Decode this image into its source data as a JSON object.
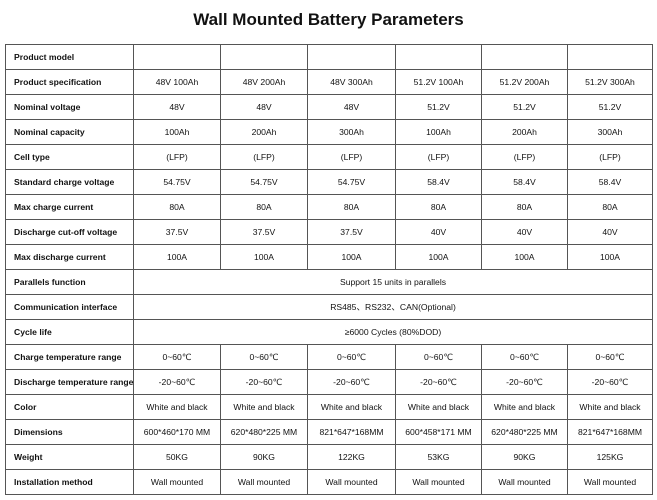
{
  "header": {
    "title": "Wall Mounted Battery Parameters"
  },
  "table": {
    "rows": [
      {
        "label": "Product model",
        "cells": []
      },
      {
        "label": "Product specification",
        "cells": [
          "48V 100Ah",
          "48V 200Ah",
          "48V 300Ah",
          "51.2V 100Ah",
          "51.2V 200Ah",
          "51.2V 300Ah"
        ]
      },
      {
        "label": "Nominal voltage",
        "cells": [
          "48V",
          "48V",
          "48V",
          "51.2V",
          "51.2V",
          "51.2V"
        ]
      },
      {
        "label": "Nominal capacity",
        "cells": [
          "100Ah",
          "200Ah",
          "300Ah",
          "100Ah",
          "200Ah",
          "300Ah"
        ]
      },
      {
        "label": "Cell type",
        "cells": [
          "(LFP)",
          "(LFP)",
          "(LFP)",
          "(LFP)",
          "(LFP)",
          "(LFP)"
        ]
      },
      {
        "label": "Standard charge voltage",
        "cells": [
          "54.75V",
          "54.75V",
          "54.75V",
          "58.4V",
          "58.4V",
          "58.4V"
        ]
      },
      {
        "label": "Max charge current",
        "cells": [
          "80A",
          "80A",
          "80A",
          "80A",
          "80A",
          "80A"
        ]
      },
      {
        "label": "Discharge cut-off voltage",
        "cells": [
          "37.5V",
          "37.5V",
          "37.5V",
          "40V",
          "40V",
          "40V"
        ]
      },
      {
        "label": "Max discharge current",
        "cells": [
          "100A",
          "100A",
          "100A",
          "100A",
          "100A",
          "100A"
        ]
      },
      {
        "label": "Parallels function",
        "cells": [
          "Support 15 units in parallels"
        ]
      },
      {
        "label": "Communication interface",
        "cells": [
          "RS485、RS232、CAN(Optional)"
        ]
      },
      {
        "label": "Cycle life",
        "cells": [
          "≥6000 Cycles (80%DOD)"
        ]
      },
      {
        "label": "Charge temperature range",
        "cells": [
          "0~60℃",
          "0~60℃",
          "0~60℃",
          "0~60℃",
          "0~60℃",
          "0~60℃"
        ]
      },
      {
        "label": "Discharge temperature range",
        "cells": [
          "-20~60℃",
          "-20~60℃",
          "-20~60℃",
          "-20~60℃",
          "-20~60℃",
          "-20~60℃"
        ]
      },
      {
        "label": "Color",
        "cells": [
          "White and black",
          "White and black",
          "White and black",
          "White and black",
          "White and black",
          "White and black"
        ]
      },
      {
        "label": "Dimensions",
        "cells": [
          "600*460*170 MM",
          "620*480*225 MM",
          "821*647*168MM",
          "600*458*171 MM",
          "620*480*225 MM",
          "821*647*168MM"
        ]
      },
      {
        "label": "Weight",
        "cells": [
          "50KG",
          "90KG",
          "122KG",
          "53KG",
          "90KG",
          "125KG"
        ]
      },
      {
        "label": "Installation method",
        "cells": [
          "Wall mounted",
          "Wall mounted",
          "Wall mounted",
          "Wall mounted",
          "Wall mounted",
          "Wall mounted"
        ]
      }
    ]
  }
}
